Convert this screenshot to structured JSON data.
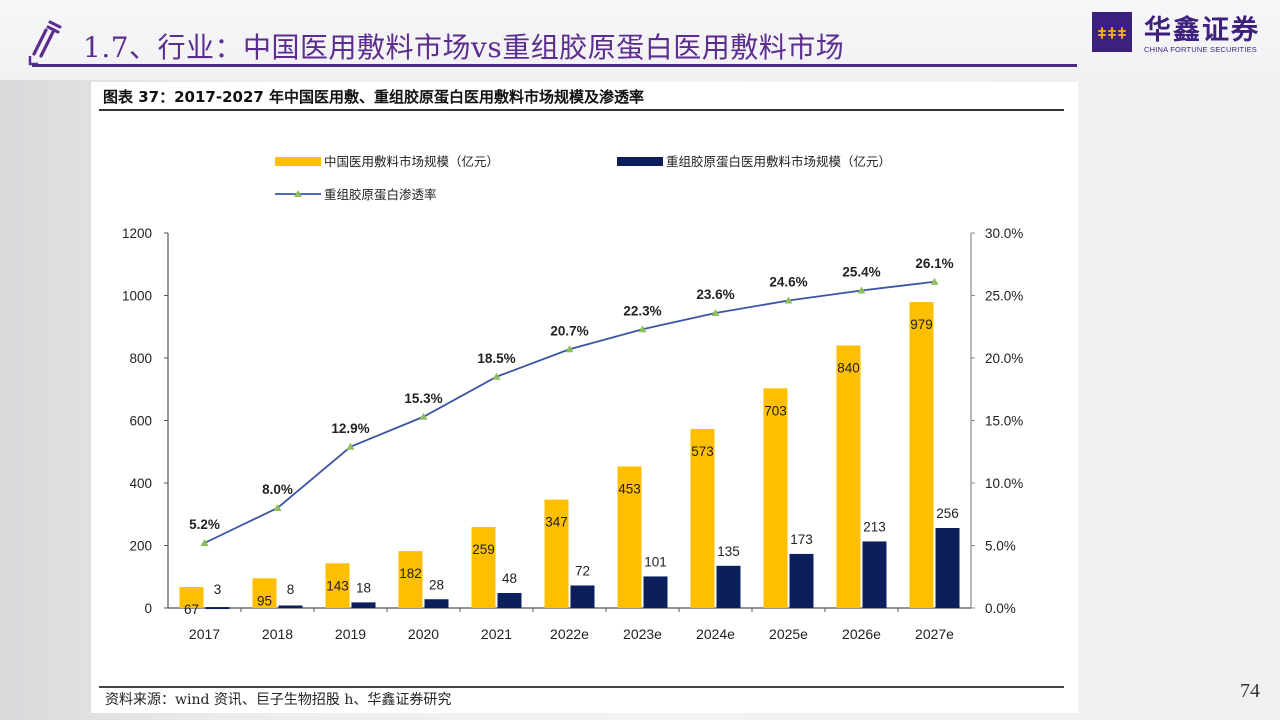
{
  "header": {
    "title": "1.7、行业：中国医用敷料市场vs重组胶原蛋白医用敷料市场",
    "icon": "pen-icon"
  },
  "logo": {
    "name_cn": "华鑫证券",
    "name_en": "CHINA FORTUNE SECURITIES",
    "brand_color": "#3d1f7d"
  },
  "chart_panel": {
    "title": "图表 37：2017-2027 年中国医用敷、重组胶原蛋白医用敷料市场规模及渗透率",
    "source": "资料来源：wind 资讯、巨子生物招股 h、华鑫证券研究"
  },
  "page_number": "74",
  "chart_data": {
    "type": "bar",
    "categories": [
      "2017",
      "2018",
      "2019",
      "2020",
      "2021",
      "2022e",
      "2023e",
      "2024e",
      "2025e",
      "2026e",
      "2027e"
    ],
    "series": [
      {
        "name": "中国医用敷料市场规模（亿元）",
        "type": "bar",
        "axis": "left",
        "color": "#fdbf00",
        "values": [
          67,
          95,
          143,
          182,
          259,
          347,
          453,
          573,
          703,
          840,
          979
        ]
      },
      {
        "name": "重组胶原蛋白医用敷料市场规模（亿元）",
        "type": "bar",
        "axis": "left",
        "color": "#0a1f5c",
        "values": [
          3,
          8,
          18,
          28,
          48,
          72,
          101,
          135,
          173,
          213,
          256
        ]
      },
      {
        "name": "重组胶原蛋白渗透率",
        "type": "line",
        "axis": "right",
        "color": "#3a55a4",
        "marker_color": "#8cbf5a",
        "values": [
          5.2,
          8.0,
          12.9,
          15.3,
          18.5,
          20.7,
          22.3,
          23.6,
          24.6,
          25.4,
          26.1
        ],
        "labels": [
          "5.2%",
          "8.0%",
          "12.9%",
          "15.3%",
          "18.5%",
          "20.7%",
          "22.3%",
          "23.6%",
          "24.6%",
          "25.4%",
          "26.1%"
        ]
      }
    ],
    "y_left": {
      "min": 0,
      "max": 1200,
      "ticks": [
        "0",
        "200",
        "400",
        "600",
        "800",
        "1000",
        "1200"
      ]
    },
    "y_right": {
      "min": 0,
      "max": 30,
      "ticks": [
        "0.0%",
        "5.0%",
        "10.0%",
        "15.0%",
        "20.0%",
        "25.0%",
        "30.0%"
      ]
    },
    "legend_position": "top",
    "grid": false,
    "title": "",
    "xlabel": "",
    "ylabel": ""
  }
}
